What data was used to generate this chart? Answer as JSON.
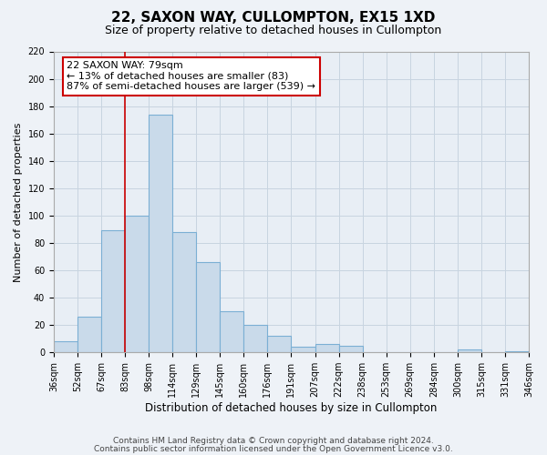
{
  "title": "22, SAXON WAY, CULLOMPTON, EX15 1XD",
  "subtitle": "Size of property relative to detached houses in Cullompton",
  "bar_values": [
    8,
    26,
    89,
    100,
    174,
    88,
    66,
    30,
    20,
    12,
    4,
    6,
    5,
    0,
    0,
    0,
    0,
    2,
    0,
    1
  ],
  "bin_labels": [
    "36sqm",
    "52sqm",
    "67sqm",
    "83sqm",
    "98sqm",
    "114sqm",
    "129sqm",
    "145sqm",
    "160sqm",
    "176sqm",
    "191sqm",
    "207sqm",
    "222sqm",
    "238sqm",
    "253sqm",
    "269sqm",
    "284sqm",
    "300sqm",
    "315sqm",
    "331sqm",
    "346sqm"
  ],
  "bar_color": "#c9daea",
  "bar_edge_color": "#7bafd4",
  "bar_edge_width": 0.8,
  "vline_x_idx": 3,
  "vline_color": "#cc0000",
  "vline_linewidth": 1.2,
  "ylabel": "Number of detached properties",
  "xlabel": "Distribution of detached houses by size in Cullompton",
  "ylim": [
    0,
    220
  ],
  "yticks": [
    0,
    20,
    40,
    60,
    80,
    100,
    120,
    140,
    160,
    180,
    200,
    220
  ],
  "annotation_title": "22 SAXON WAY: 79sqm",
  "annotation_line1": "← 13% of detached houses are smaller (83)",
  "annotation_line2": "87% of semi-detached houses are larger (539) →",
  "footer1": "Contains HM Land Registry data © Crown copyright and database right 2024.",
  "footer2": "Contains public sector information licensed under the Open Government Licence v3.0.",
  "fig_bg_color": "#eef2f7",
  "plot_bg_color": "#e8eef5",
  "grid_color": "#c8d4e0",
  "title_fontsize": 11,
  "subtitle_fontsize": 9,
  "xlabel_fontsize": 8.5,
  "ylabel_fontsize": 8,
  "tick_fontsize": 7,
  "footer_fontsize": 6.5,
  "ann_fontsize": 8
}
